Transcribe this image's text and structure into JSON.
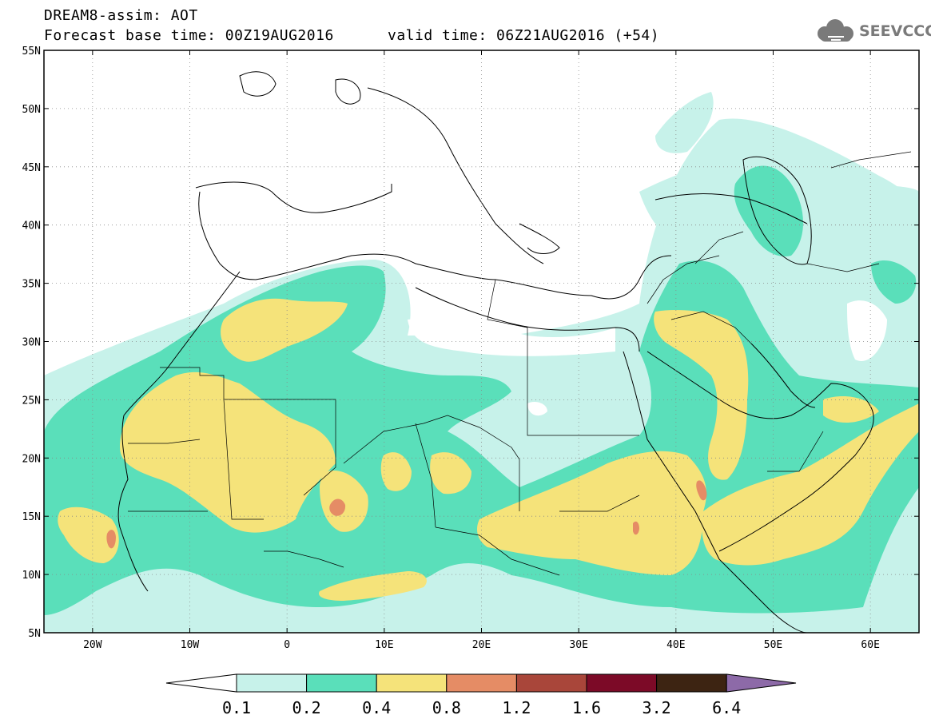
{
  "header": {
    "line1": "DREAM8-assim: AOT",
    "line2": "Forecast base time: 00Z19AUG2016",
    "valid": "valid time: 06Z21AUG2016 (+54)"
  },
  "logo": {
    "text": "SEEVCCC",
    "icon": "cloud-icon",
    "color": "#7a7a7a"
  },
  "map": {
    "lon_range": [
      -25,
      65
    ],
    "lat_range": [
      5,
      55
    ],
    "lat_ticks": [
      "5N",
      "10N",
      "15N",
      "20N",
      "25N",
      "30N",
      "35N",
      "40N",
      "45N",
      "50N",
      "55N"
    ],
    "lon_ticks": [
      "20W",
      "10W",
      "0",
      "10E",
      "20E",
      "30E",
      "40E",
      "50E",
      "60E"
    ],
    "grid_lines": "dotted",
    "border_color": "#000000"
  },
  "colorbar": {
    "labels": [
      "0.1",
      "0.2",
      "0.4",
      "0.8",
      "1.2",
      "1.6",
      "3.2",
      "6.4"
    ],
    "colors": [
      "#c7f2ea",
      "#5adfba",
      "#f5e37a",
      "#e58c65",
      "#a9463a",
      "#7c0a27",
      "#3d2412",
      "#8d6aa8"
    ],
    "under_color": "#ffffff"
  }
}
